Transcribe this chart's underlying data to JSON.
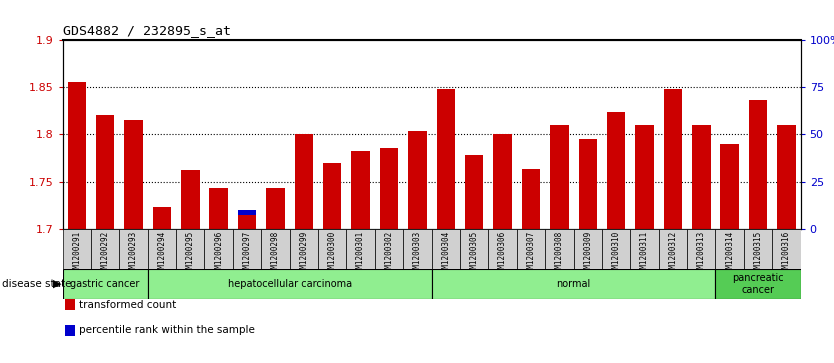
{
  "title": "GDS4882 / 232895_s_at",
  "samples": [
    "GSM1200291",
    "GSM1200292",
    "GSM1200293",
    "GSM1200294",
    "GSM1200295",
    "GSM1200296",
    "GSM1200297",
    "GSM1200298",
    "GSM1200299",
    "GSM1200300",
    "GSM1200301",
    "GSM1200302",
    "GSM1200303",
    "GSM1200304",
    "GSM1200305",
    "GSM1200306",
    "GSM1200307",
    "GSM1200308",
    "GSM1200309",
    "GSM1200310",
    "GSM1200311",
    "GSM1200312",
    "GSM1200313",
    "GSM1200314",
    "GSM1200315",
    "GSM1200316"
  ],
  "transformed_count": [
    1.855,
    1.82,
    1.815,
    1.723,
    1.762,
    1.743,
    1.715,
    1.743,
    1.8,
    1.77,
    1.782,
    1.785,
    1.803,
    1.848,
    1.778,
    1.8,
    1.763,
    1.81,
    1.795,
    1.824,
    1.81,
    1.848,
    1.81,
    1.79,
    1.836,
    1.81
  ],
  "percentile_rank": [
    10,
    10,
    10,
    8,
    8,
    10,
    10,
    8,
    8,
    8,
    8,
    8,
    8,
    8,
    8,
    8,
    8,
    8,
    8,
    8,
    8,
    8,
    8,
    5,
    8,
    8
  ],
  "ymin": 1.7,
  "ymax": 1.9,
  "yticks": [
    1.7,
    1.75,
    1.8,
    1.85,
    1.9
  ],
  "ytick_labels": [
    "1.7",
    "1.75",
    "1.8",
    "1.85",
    "1.9"
  ],
  "right_yticks_pct": [
    0,
    25,
    50,
    75,
    100
  ],
  "right_ylabels": [
    "0",
    "25",
    "50",
    "75",
    "100%"
  ],
  "disease_groups": [
    {
      "label": "gastric cancer",
      "start": 0,
      "end": 3,
      "color": "#90EE90"
    },
    {
      "label": "hepatocellular carcinoma",
      "start": 3,
      "end": 13,
      "color": "#90EE90"
    },
    {
      "label": "normal",
      "start": 13,
      "end": 23,
      "color": "#90EE90"
    },
    {
      "label": "pancreatic\ncancer",
      "start": 23,
      "end": 26,
      "color": "#55CC55"
    }
  ],
  "bar_color_red": "#CC0000",
  "bar_color_blue": "#0000CC",
  "tick_color_left": "#CC0000",
  "tick_color_right": "#0000CC",
  "xticklabel_bg": "#D8D8D8",
  "disease_state_label": "disease state",
  "legend_red_label": "transformed count",
  "legend_blue_label": "percentile rank within the sample"
}
